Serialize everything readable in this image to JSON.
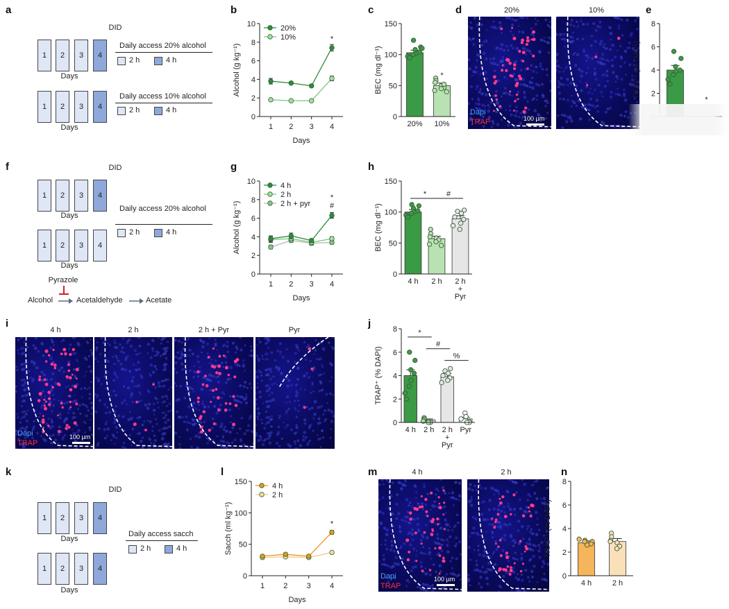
{
  "panels": {
    "a": {
      "letter": "a",
      "title": "DID",
      "rows": [
        {
          "header": "Daily access 20% alcohol",
          "days_label": "Days",
          "boxes": [
            "1",
            "2",
            "3",
            "4"
          ]
        },
        {
          "header": "Daily access 10% alcohol",
          "days_label": "Days",
          "boxes": [
            "1",
            "2",
            "3",
            "4"
          ]
        }
      ],
      "legend_2h": "2 h",
      "legend_4h": "4 h"
    },
    "f": {
      "letter": "f",
      "title": "DID",
      "header": "Daily access 20% alcohol",
      "days_label": "Days",
      "boxes": [
        "1",
        "2",
        "3",
        "4"
      ],
      "legend_2h": "2 h",
      "legend_4h": "4 h",
      "pyrazole": "Pyrazole",
      "pathway": [
        "Alcohol",
        "Acetaldehyde",
        "Acetate"
      ]
    },
    "k": {
      "letter": "k",
      "title": "DID",
      "header": "Daily access sacch",
      "days_label": "Days",
      "boxes": [
        "1",
        "2",
        "3",
        "4"
      ],
      "legend_2h": "2 h",
      "legend_4h": "4 h"
    },
    "d": {
      "letter": "d",
      "labels": [
        "20%",
        "10%"
      ],
      "dapi": "Dapi",
      "trap": "TRAP",
      "scale": "100 µm"
    },
    "i": {
      "letter": "i",
      "labels": [
        "4 h",
        "2 h",
        "2 h + Pyr",
        "Pyr"
      ],
      "dapi": "Dapi",
      "trap": "TRAP",
      "scale": "100 µm"
    },
    "m": {
      "letter": "m",
      "labels": [
        "4 h",
        "2 h"
      ],
      "dapi": "Dapi",
      "trap": "TRAP",
      "scale": "100 µm"
    }
  },
  "colors": {
    "dark_green": "#2e8b3a",
    "light_green": "#9ad39a",
    "gray": "#e2e2e2",
    "orange": "#f0a030",
    "light_orange": "#f7d7a6",
    "box_light": "#dfe6f6",
    "box_dark": "#8ea8dc"
  },
  "chart_data": [
    {
      "id": "b",
      "letter": "b",
      "type": "line",
      "x": [
        1,
        2,
        3,
        4
      ],
      "xlabel": "Days",
      "ylabel": "Alcohol (g kg⁻¹)",
      "ylim": [
        0,
        10
      ],
      "yticks": [
        0,
        2,
        4,
        6,
        8,
        10
      ],
      "series": [
        {
          "name": "20%",
          "values": [
            3.8,
            3.6,
            3.3,
            7.4
          ],
          "err": [
            0.3,
            0.15,
            0.15,
            0.35
          ],
          "color": "#2e8b3a",
          "fill": "#2e8b3a"
        },
        {
          "name": "10%",
          "values": [
            1.8,
            1.7,
            1.7,
            4.1
          ],
          "err": [
            0.1,
            0.1,
            0.1,
            0.25
          ],
          "color": "#7fc47f",
          "fill": "#a8dca8"
        }
      ],
      "annotations": [
        {
          "x": 4,
          "y": 8.4,
          "text": "*"
        }
      ]
    },
    {
      "id": "c",
      "letter": "c",
      "type": "bar",
      "categories": [
        "20%",
        "10%"
      ],
      "ylabel": "BEC (mg dl⁻¹)",
      "ylim": [
        0,
        150
      ],
      "yticks": [
        0,
        50,
        100,
        150
      ],
      "values": [
        103,
        50
      ],
      "err": [
        4,
        4
      ],
      "fills": [
        "#3b9a45",
        "#b9e2b2"
      ],
      "points": [
        [
          123,
          112,
          108,
          104,
          102,
          100,
          97,
          95,
          110
        ],
        [
          62,
          58,
          55,
          50,
          47,
          45,
          42,
          40,
          52
        ]
      ],
      "annotations": [
        {
          "cat": 1,
          "y": 67,
          "text": "*"
        }
      ]
    },
    {
      "id": "e",
      "letter": "e",
      "type": "bar",
      "categories": [
        "",
        ""
      ],
      "ylabel": "TRAP⁺ (% DAPI)",
      "ylim": [
        0,
        8
      ],
      "yticks": [
        0,
        2,
        4,
        6,
        8
      ],
      "values": [
        4.0,
        0
      ],
      "err": [
        0.4,
        0
      ],
      "fills": [
        "#3b9a45",
        "#b9e2b2"
      ],
      "points": [
        [
          5.6,
          5.0,
          4.3,
          4.0,
          3.9,
          3.6,
          3.2,
          2.8
        ],
        []
      ],
      "annotations": [
        {
          "cat": 1,
          "y": 1.5,
          "text": "*"
        }
      ]
    },
    {
      "id": "g",
      "letter": "g",
      "type": "line",
      "x": [
        1,
        2,
        3,
        4
      ],
      "xlabel": "Days",
      "ylabel": "Alcohol (g kg⁻¹)",
      "ylim": [
        0,
        10
      ],
      "yticks": [
        0,
        2,
        4,
        6,
        8,
        10
      ],
      "series": [
        {
          "name": "4 h",
          "values": [
            3.8,
            4.1,
            3.6,
            6.3
          ],
          "err": [
            0.3,
            0.3,
            0.2,
            0.3
          ],
          "color": "#2e8b3a",
          "fill": "#2e8b3a"
        },
        {
          "name": "2 h",
          "values": [
            3.7,
            3.8,
            3.4,
            3.8
          ],
          "err": [
            0.3,
            0.2,
            0.2,
            0.2
          ],
          "color": "#7fc47f",
          "fill": "#a8dca8"
        },
        {
          "name": "2 h + pyr",
          "values": [
            2.9,
            3.6,
            3.3,
            3.4
          ],
          "err": [
            0.2,
            0.2,
            0.2,
            0.2
          ],
          "color": "#b8b8b8",
          "fill": "#8fbf8f"
        }
      ],
      "annotations": [
        {
          "x": 4,
          "y": 8.3,
          "text": "*"
        },
        {
          "x": 4,
          "y": 7.4,
          "text": "#"
        }
      ]
    },
    {
      "id": "h",
      "letter": "h",
      "type": "bar",
      "categories": [
        "4 h",
        "2 h",
        "2 h\n+\nPyr"
      ],
      "ylabel": "BEC (mg dl⁻¹)",
      "ylim": [
        0,
        150
      ],
      "yticks": [
        0,
        50,
        100,
        150
      ],
      "values": [
        100,
        57,
        89
      ],
      "err": [
        4,
        4,
        5
      ],
      "fills": [
        "#3b9a45",
        "#b9e2b2",
        "#e6e6e6"
      ],
      "points": [
        [
          112,
          110,
          106,
          102,
          100,
          98,
          95,
          92
        ],
        [
          72,
          65,
          60,
          58,
          55,
          52,
          48,
          46
        ],
        [
          103,
          101,
          98,
          92,
          88,
          82,
          78,
          72
        ]
      ],
      "brackets": [
        {
          "from": 0,
          "to": 1,
          "y": 122,
          "text": "*"
        },
        {
          "from": 1,
          "to": 2,
          "y": 122,
          "text": "#"
        }
      ]
    },
    {
      "id": "j",
      "letter": "j",
      "type": "bar",
      "categories": [
        "4 h",
        "2 h",
        "2 h\n+\nPyr",
        "Pyr"
      ],
      "ylabel": "TRAP⁺ (% DAPI)",
      "ylim": [
        0,
        8
      ],
      "yticks": [
        0,
        2,
        4,
        6,
        8
      ],
      "values": [
        4.0,
        0.2,
        3.9,
        0.3
      ],
      "err": [
        0.5,
        0.1,
        0.3,
        0.15
      ],
      "fills": [
        "#3b9a45",
        "#b9e2b2",
        "#e6e6e6",
        "#ffffff"
      ],
      "points": [
        [
          6.0,
          5.3,
          4.5,
          4.2,
          3.6,
          3.1,
          2.5,
          2.0
        ],
        [
          0.4,
          0.3,
          0.2,
          0.1,
          0.0,
          0.0,
          0.1
        ],
        [
          4.6,
          4.4,
          4.2,
          4.0,
          3.8,
          3.6,
          3.4
        ],
        [
          0.8,
          0.5,
          0.3,
          0.1,
          0.0,
          0.0
        ]
      ],
      "brackets": [
        {
          "from": 0,
          "to": 1,
          "y": 7.3,
          "text": "*"
        },
        {
          "from": 1,
          "to": 2,
          "y": 6.3,
          "text": "#"
        },
        {
          "from": 2,
          "to": 3,
          "y": 5.3,
          "text": "%"
        }
      ]
    },
    {
      "id": "l",
      "letter": "l",
      "type": "line",
      "x": [
        1,
        2,
        3,
        4
      ],
      "xlabel": "Days",
      "ylabel": "Sacch (ml kg⁻¹)",
      "ylim": [
        0,
        150
      ],
      "yticks": [
        0,
        50,
        100,
        150
      ],
      "series": [
        {
          "name": "4 h",
          "values": [
            31,
            34,
            31,
            69
          ],
          "err": [
            2,
            2,
            2,
            3
          ],
          "color": "#e8951f",
          "fill": "#e8951f"
        },
        {
          "name": "2 h",
          "values": [
            29,
            30,
            29,
            37
          ],
          "err": [
            2,
            2,
            2,
            2
          ],
          "color": "#f3c987",
          "fill": "#f7d7a6"
        }
      ],
      "annotations": [
        {
          "x": 4,
          "y": 83,
          "text": "*"
        }
      ]
    },
    {
      "id": "n",
      "letter": "n",
      "type": "bar",
      "categories": [
        "4 h",
        "2 h"
      ],
      "ylabel": "TRAP⁺ (% DAPI)",
      "ylim": [
        0,
        8
      ],
      "yticks": [
        0,
        2,
        4,
        6,
        8
      ],
      "values": [
        2.8,
        2.9
      ],
      "err": [
        0.15,
        0.25
      ],
      "fills": [
        "#f5b55a",
        "#f9e0b8"
      ],
      "points": [
        [
          3.0,
          2.9,
          2.8,
          2.7,
          2.6,
          2.9,
          3.1
        ],
        [
          3.6,
          3.3,
          3.0,
          2.8,
          2.5,
          2.3,
          2.9
        ]
      ],
      "annotations": []
    }
  ]
}
